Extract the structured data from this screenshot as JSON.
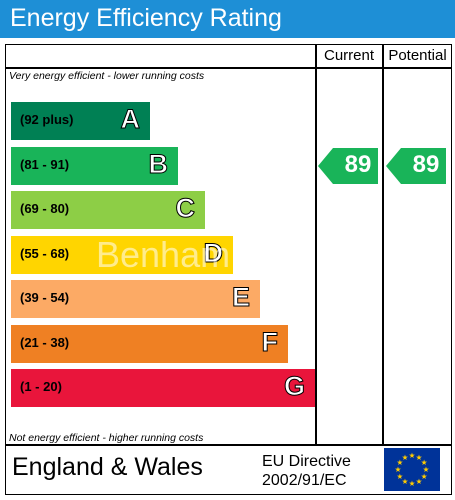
{
  "header": {
    "title": "Energy Efficiency Rating"
  },
  "columns": {
    "current": "Current",
    "potential": "Potential"
  },
  "notes": {
    "top": "Very energy efficient - lower running costs",
    "bottom": "Not energy efficient - higher running costs"
  },
  "chart_data": {
    "type": "bar",
    "title": "Energy Efficiency Rating",
    "categories": [
      "A",
      "B",
      "C",
      "D",
      "E",
      "F",
      "G"
    ],
    "bands": [
      {
        "range": "(92 plus)",
        "letter": "A",
        "color": "#008054"
      },
      {
        "range": "(81 - 91)",
        "letter": "B",
        "color": "#19b459"
      },
      {
        "range": "(69 - 80)",
        "letter": "C",
        "color": "#8dce46"
      },
      {
        "range": "(55 - 68)",
        "letter": "D",
        "color": "#ffd500"
      },
      {
        "range": "(39 - 54)",
        "letter": "E",
        "color": "#fcaa65"
      },
      {
        "range": "(21 - 38)",
        "letter": "F",
        "color": "#ef8023"
      },
      {
        "range": "(1 - 20)",
        "letter": "G",
        "color": "#e9153b"
      }
    ],
    "current": {
      "value": "89",
      "band": "B"
    },
    "potential": {
      "value": "89",
      "band": "B"
    },
    "arrow_color": "#19b459"
  },
  "footer": {
    "region": "England & Wales",
    "directive_line1": "EU Directive",
    "directive_line2": "2002/91/EC"
  },
  "watermark": "Benham",
  "eu_flag": {
    "icon": "eu-flag-icon",
    "field_color": "#003399",
    "star_color": "#ffcc00"
  }
}
